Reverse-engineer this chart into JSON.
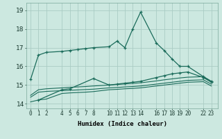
{
  "xlabel": "Humidex (Indice chaleur)",
  "bg_color": "#cce8e0",
  "grid_color": "#aaccc4",
  "line_color": "#1a6b5a",
  "x_ticks": [
    0,
    1,
    2,
    4,
    5,
    6,
    7,
    8,
    10,
    11,
    12,
    13,
    14,
    16,
    17,
    18,
    19,
    20,
    22,
    23
  ],
  "yticks": [
    14,
    15,
    16,
    17,
    18,
    19
  ],
  "ylim": [
    13.75,
    19.4
  ],
  "xlim": [
    -0.5,
    23.8
  ],
  "series1_spiky": {
    "x": [
      0,
      1,
      2,
      4,
      5,
      6,
      7,
      8,
      10,
      11,
      12,
      13,
      14,
      16,
      17,
      18,
      19,
      20,
      22,
      23
    ],
    "y": [
      15.3,
      16.6,
      16.75,
      16.8,
      16.85,
      16.9,
      16.95,
      17.0,
      17.05,
      17.35,
      17.0,
      18.0,
      18.9,
      17.25,
      16.85,
      16.4,
      16.0,
      16.0,
      15.45,
      15.2
    ]
  },
  "series2_upper": {
    "x": [
      1,
      4,
      5,
      8,
      10,
      11,
      12,
      13,
      14,
      16,
      17,
      18,
      19,
      20,
      22,
      23
    ],
    "y": [
      14.2,
      14.75,
      14.8,
      15.35,
      15.0,
      15.05,
      15.1,
      15.15,
      15.2,
      15.4,
      15.5,
      15.6,
      15.65,
      15.7,
      15.4,
      15.15
    ]
  },
  "series3_mid": {
    "x": [
      0,
      1,
      2,
      4,
      5,
      6,
      7,
      8,
      10,
      11,
      12,
      13,
      14,
      16,
      17,
      18,
      19,
      20,
      22,
      23
    ],
    "y": [
      14.45,
      14.75,
      14.8,
      14.85,
      14.88,
      14.9,
      14.92,
      14.95,
      15.0,
      15.03,
      15.06,
      15.09,
      15.12,
      15.22,
      15.28,
      15.33,
      15.38,
      15.42,
      15.45,
      15.2
    ]
  },
  "series4_low1": {
    "x": [
      0,
      1,
      2,
      4,
      5,
      6,
      7,
      8,
      10,
      11,
      12,
      13,
      14,
      16,
      17,
      18,
      19,
      20,
      22,
      23
    ],
    "y": [
      14.35,
      14.62,
      14.66,
      14.7,
      14.72,
      14.74,
      14.76,
      14.78,
      14.85,
      14.87,
      14.9,
      14.92,
      14.95,
      15.05,
      15.1,
      15.15,
      15.2,
      15.25,
      15.28,
      15.05
    ]
  },
  "series5_low2": {
    "x": [
      0,
      1,
      2,
      4,
      5,
      6,
      7,
      8,
      10,
      11,
      12,
      13,
      14,
      16,
      17,
      18,
      19,
      20,
      22,
      23
    ],
    "y": [
      14.1,
      14.2,
      14.25,
      14.55,
      14.58,
      14.6,
      14.62,
      14.65,
      14.75,
      14.77,
      14.8,
      14.82,
      14.85,
      14.95,
      15.0,
      15.05,
      15.1,
      15.15,
      15.18,
      14.95
    ]
  }
}
